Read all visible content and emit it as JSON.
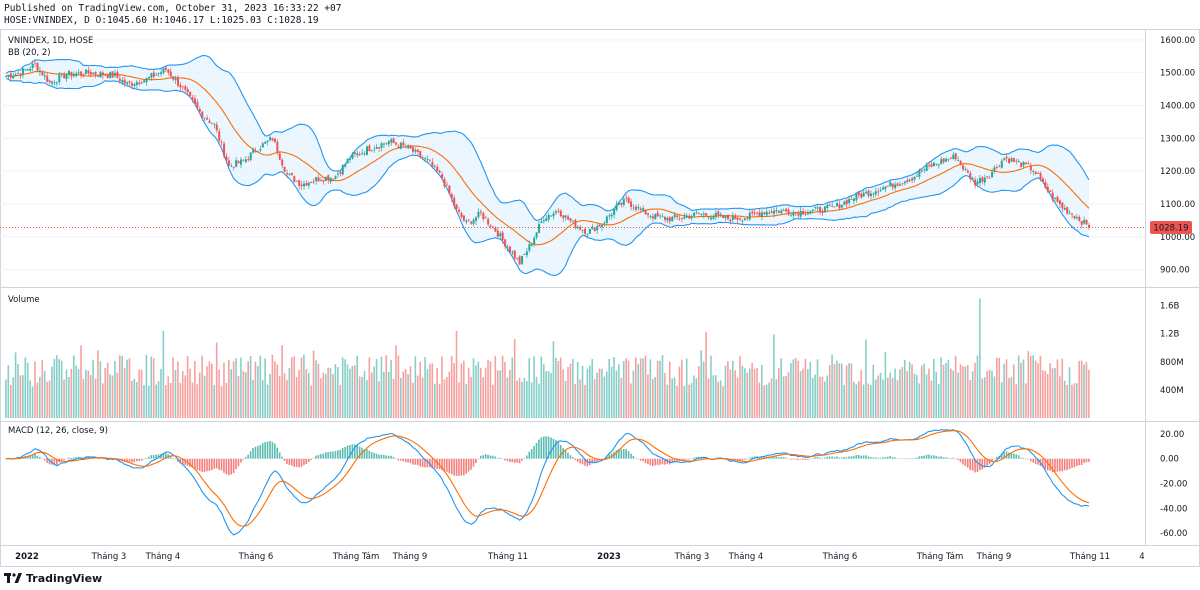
{
  "header": {
    "published": "Published on TradingView.com, October 31, 2023 16:33:22 +07",
    "ohlc": "HOSE:VNINDEX, D O:1045.60 H:1046.17 L:1025.03 C:1028.19"
  },
  "footer": {
    "brand": "TradingView",
    "logo_icon": "tradingview-logo-icon"
  },
  "colors": {
    "up": "#26a69a",
    "down": "#ef5350",
    "bb_band": "#2196f3",
    "bb_basis": "#ff6d00",
    "bb_fill": "#e3f2fd",
    "macd_line": "#2196f3",
    "signal_line": "#ff6d00",
    "grid": "#f0f3fa",
    "price_label_bg": "#ef5350"
  },
  "chart_data": [
    {
      "type": "candlestick",
      "pane": "price",
      "legend": [
        "VNINDEX, 1D, HOSE",
        "BB (20, 2)"
      ],
      "x_axis_ticks": [
        "2022",
        "Tháng 3",
        "Tháng 4",
        "Tháng 6",
        "Tháng Tám",
        "Tháng 9",
        "Tháng 11",
        "2023",
        "Tháng 3",
        "Tháng 4",
        "Tháng 6",
        "Tháng Tám",
        "Tháng 9",
        "Tháng 11",
        "4"
      ],
      "y_axis_ticks": [
        "1600.00",
        "1500.00",
        "1400.00",
        "1300.00",
        "1200.00",
        "1100.00",
        "1000.00",
        "900.00"
      ],
      "ylim": [
        850,
        1630
      ],
      "last_price_label": "1028.19",
      "last_price": 1028.19,
      "close_path": [
        {
          "x": 0,
          "y": 1490
        },
        {
          "x": 6,
          "y": 1500
        },
        {
          "x": 12,
          "y": 1525
        },
        {
          "x": 18,
          "y": 1470
        },
        {
          "x": 25,
          "y": 1495
        },
        {
          "x": 35,
          "y": 1500
        },
        {
          "x": 45,
          "y": 1490
        },
        {
          "x": 50,
          "y": 1465
        },
        {
          "x": 58,
          "y": 1480
        },
        {
          "x": 66,
          "y": 1510
        },
        {
          "x": 72,
          "y": 1460
        },
        {
          "x": 80,
          "y": 1380
        },
        {
          "x": 86,
          "y": 1340
        },
        {
          "x": 92,
          "y": 1215
        },
        {
          "x": 98,
          "y": 1230
        },
        {
          "x": 104,
          "y": 1270
        },
        {
          "x": 110,
          "y": 1300
        },
        {
          "x": 116,
          "y": 1190
        },
        {
          "x": 122,
          "y": 1160
        },
        {
          "x": 128,
          "y": 1175
        },
        {
          "x": 136,
          "y": 1185
        },
        {
          "x": 142,
          "y": 1240
        },
        {
          "x": 150,
          "y": 1270
        },
        {
          "x": 158,
          "y": 1290
        },
        {
          "x": 166,
          "y": 1270
        },
        {
          "x": 174,
          "y": 1230
        },
        {
          "x": 180,
          "y": 1180
        },
        {
          "x": 186,
          "y": 1080
        },
        {
          "x": 190,
          "y": 1040
        },
        {
          "x": 196,
          "y": 1070
        },
        {
          "x": 202,
          "y": 1020
        },
        {
          "x": 208,
          "y": 960
        },
        {
          "x": 212,
          "y": 920
        },
        {
          "x": 216,
          "y": 970
        },
        {
          "x": 222,
          "y": 1060
        },
        {
          "x": 228,
          "y": 1080
        },
        {
          "x": 234,
          "y": 1040
        },
        {
          "x": 240,
          "y": 1015
        },
        {
          "x": 246,
          "y": 1040
        },
        {
          "x": 252,
          "y": 1090
        },
        {
          "x": 256,
          "y": 1110
        },
        {
          "x": 262,
          "y": 1080
        },
        {
          "x": 268,
          "y": 1060
        },
        {
          "x": 274,
          "y": 1055
        },
        {
          "x": 280,
          "y": 1060
        },
        {
          "x": 286,
          "y": 1070
        },
        {
          "x": 292,
          "y": 1065
        },
        {
          "x": 298,
          "y": 1055
        },
        {
          "x": 306,
          "y": 1060
        },
        {
          "x": 312,
          "y": 1075
        },
        {
          "x": 318,
          "y": 1080
        },
        {
          "x": 326,
          "y": 1075
        },
        {
          "x": 334,
          "y": 1080
        },
        {
          "x": 342,
          "y": 1090
        },
        {
          "x": 350,
          "y": 1120
        },
        {
          "x": 358,
          "y": 1140
        },
        {
          "x": 366,
          "y": 1160
        },
        {
          "x": 374,
          "y": 1180
        },
        {
          "x": 380,
          "y": 1210
        },
        {
          "x": 386,
          "y": 1230
        },
        {
          "x": 392,
          "y": 1245
        },
        {
          "x": 396,
          "y": 1200
        },
        {
          "x": 400,
          "y": 1165
        },
        {
          "x": 406,
          "y": 1190
        },
        {
          "x": 412,
          "y": 1240
        },
        {
          "x": 418,
          "y": 1225
        },
        {
          "x": 424,
          "y": 1205
        },
        {
          "x": 428,
          "y": 1160
        },
        {
          "x": 432,
          "y": 1120
        },
        {
          "x": 436,
          "y": 1090
        },
        {
          "x": 442,
          "y": 1060
        },
        {
          "x": 447,
          "y": 1028.19
        }
      ]
    },
    {
      "type": "bar",
      "pane": "volume",
      "legend": [
        "Volume"
      ],
      "y_axis_ticks": [
        "1.6B",
        "1.2B",
        "800M",
        "400M"
      ],
      "ylim": [
        0,
        1.75
      ],
      "value_unit": "B"
    },
    {
      "type": "line",
      "pane": "macd",
      "legend": [
        "MACD (12, 26, close, 9)"
      ],
      "y_axis_ticks": [
        "20.00",
        "0.00",
        "-20.00",
        "-40.00",
        "-60.00"
      ],
      "ylim": [
        -68,
        28
      ],
      "series": [
        {
          "values": []
        },
        {
          "values": []
        }
      ]
    }
  ]
}
